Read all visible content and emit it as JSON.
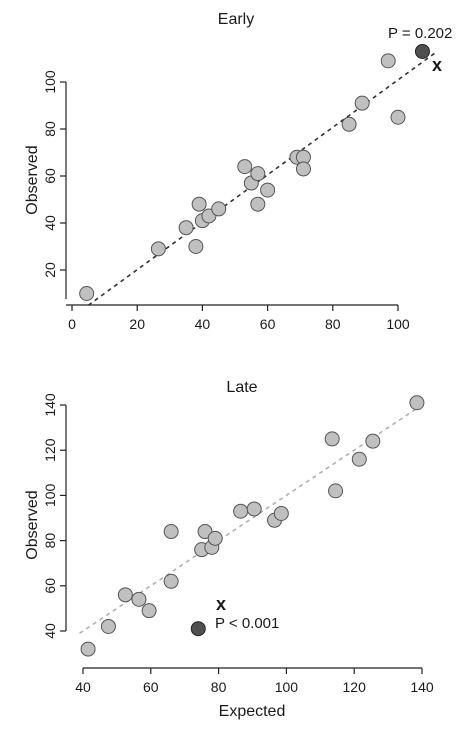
{
  "chart_data": [
    {
      "type": "scatter",
      "title": "Early",
      "xlabel": "",
      "ylabel": "Observed",
      "xlim": [
        0,
        110
      ],
      "ylim": [
        5,
        115
      ],
      "xticks": [
        0,
        20,
        40,
        60,
        80,
        100
      ],
      "yticks": [
        20,
        40,
        60,
        80,
        100
      ],
      "x_tick_labels": [
        "0",
        "20",
        "40",
        "60",
        "80",
        "100"
      ],
      "y_tick_labels": [
        "20",
        "40",
        "60",
        "80",
        "100"
      ],
      "fit_line": {
        "style": "dashed",
        "color": "#333333",
        "from": [
          5,
          5
        ],
        "to": [
          112,
          113
        ]
      },
      "points": [
        {
          "x": 4.5,
          "y": 10
        },
        {
          "x": 26.5,
          "y": 29
        },
        {
          "x": 35,
          "y": 38
        },
        {
          "x": 38,
          "y": 30
        },
        {
          "x": 39,
          "y": 48
        },
        {
          "x": 40,
          "y": 41
        },
        {
          "x": 42,
          "y": 43
        },
        {
          "x": 45,
          "y": 46
        },
        {
          "x": 53,
          "y": 64
        },
        {
          "x": 55,
          "y": 57
        },
        {
          "x": 57,
          "y": 61
        },
        {
          "x": 57,
          "y": 48
        },
        {
          "x": 60,
          "y": 54
        },
        {
          "x": 69,
          "y": 68
        },
        {
          "x": 71,
          "y": 68
        },
        {
          "x": 71,
          "y": 63
        },
        {
          "x": 85,
          "y": 82
        },
        {
          "x": 89,
          "y": 91
        },
        {
          "x": 97,
          "y": 109
        },
        {
          "x": 100,
          "y": 85
        }
      ],
      "highlight_point": {
        "x": 107.5,
        "y": 113
      },
      "annotation": {
        "text": "P = 0.202"
      },
      "x_marker": {
        "text": "x"
      },
      "point_fill": "#c0c0c0",
      "highlight_fill": "#505050"
    },
    {
      "type": "scatter",
      "title": "Late",
      "xlabel": "Expected",
      "ylabel": "Observed",
      "xlim": [
        40,
        140
      ],
      "ylim": [
        30,
        145
      ],
      "xticks": [
        40,
        60,
        80,
        100,
        120,
        140
      ],
      "yticks": [
        40,
        60,
        80,
        100,
        120,
        140
      ],
      "x_tick_labels": [
        "40",
        "60",
        "80",
        "100",
        "120",
        "140"
      ],
      "y_tick_labels": [
        "40",
        "60",
        "80",
        "100",
        "120",
        "140"
      ],
      "fit_line": {
        "style": "dashed",
        "color": "#b0b0b0",
        "from": [
          39,
          39
        ],
        "to": [
          139,
          139
        ]
      },
      "points": [
        {
          "x": 41.5,
          "y": 32
        },
        {
          "x": 47.5,
          "y": 42
        },
        {
          "x": 52.5,
          "y": 56
        },
        {
          "x": 56.5,
          "y": 54
        },
        {
          "x": 59.5,
          "y": 49
        },
        {
          "x": 66,
          "y": 84
        },
        {
          "x": 66,
          "y": 62
        },
        {
          "x": 75,
          "y": 76
        },
        {
          "x": 76,
          "y": 84
        },
        {
          "x": 78,
          "y": 77
        },
        {
          "x": 79,
          "y": 81
        },
        {
          "x": 86.5,
          "y": 93
        },
        {
          "x": 90.5,
          "y": 94
        },
        {
          "x": 96.5,
          "y": 89
        },
        {
          "x": 98.5,
          "y": 92
        },
        {
          "x": 113.5,
          "y": 125
        },
        {
          "x": 114.5,
          "y": 102
        },
        {
          "x": 121.5,
          "y": 116
        },
        {
          "x": 125.5,
          "y": 124
        },
        {
          "x": 138.5,
          "y": 141
        }
      ],
      "highlight_point": {
        "x": 74,
        "y": 41
      },
      "annotation": {
        "text": "P < 0.001"
      },
      "x_marker": {
        "text": "x"
      },
      "point_fill": "#c0c0c0",
      "highlight_fill": "#505050"
    }
  ]
}
